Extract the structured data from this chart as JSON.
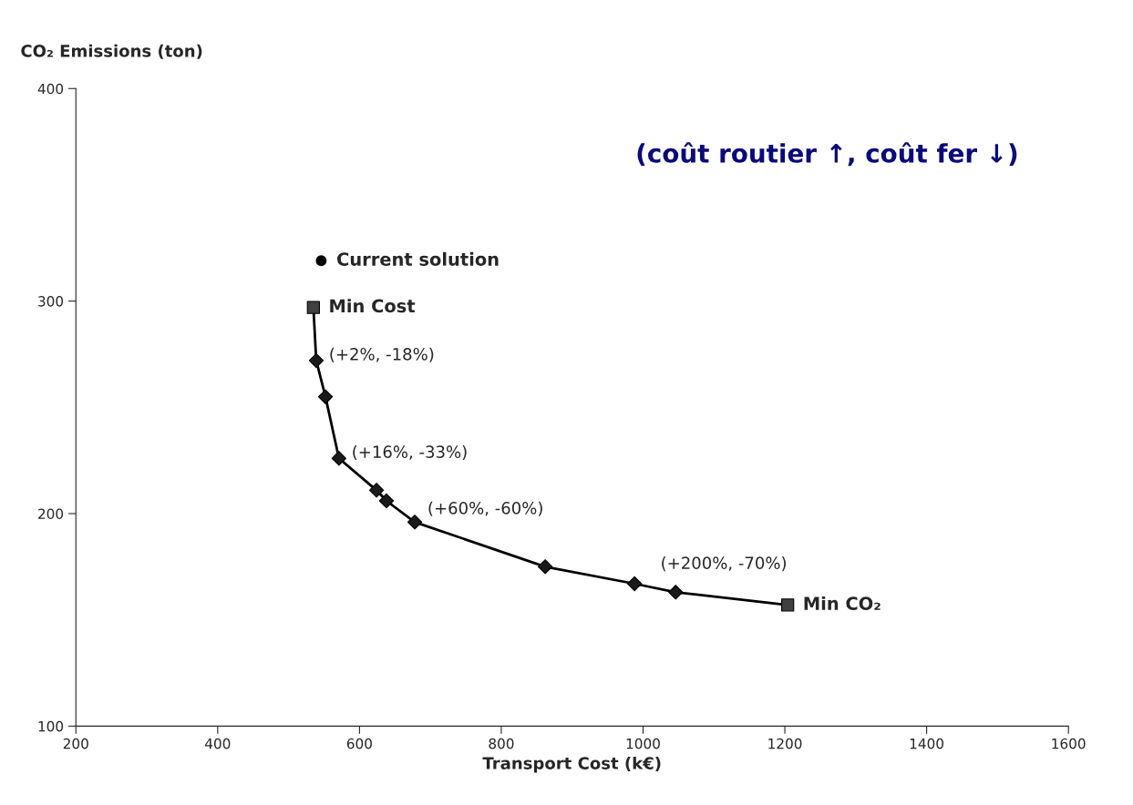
{
  "chart_data": {
    "type": "line",
    "xlabel": "Transport Cost (k€)",
    "ylabel": "CO₂ Emissions (ton)",
    "xlim": [
      200,
      1600
    ],
    "xticks": [
      200,
      400,
      600,
      800,
      1000,
      1200,
      1400,
      1600
    ],
    "ylim": [
      100,
      400
    ],
    "yticks": [
      100,
      200,
      300,
      400
    ],
    "grid": false,
    "series": [
      {
        "color": "#000000",
        "marker": "none",
        "line_style": "solid",
        "x": [
          535,
          539,
          552,
          571,
          624,
          638,
          678,
          862,
          988,
          1046,
          1204
        ],
        "values": [
          297,
          272,
          255,
          226,
          211,
          206,
          196,
          175,
          167,
          163,
          157
        ]
      },
      {
        "type": "scatter",
        "color": "#1a1a1a",
        "marker": "diamond",
        "x": [
          539,
          552,
          571,
          624,
          638,
          678,
          862,
          988,
          1046
        ],
        "values": [
          272,
          255,
          226,
          211,
          206,
          196,
          175,
          167,
          163
        ]
      },
      {
        "type": "scatter",
        "color": "#404040",
        "marker": "square",
        "x": [
          535,
          1204
        ],
        "values": [
          297,
          157
        ]
      },
      {
        "type": "scatter",
        "color": "#000000",
        "marker": "circle",
        "x": [
          546
        ],
        "values": [
          319
        ]
      }
    ],
    "annotations": [
      {
        "text": "Current solution",
        "x": 546,
        "y": 319
      },
      {
        "text": "Min Cost",
        "x": 535,
        "y": 297
      },
      {
        "text": "(+2%, -18%)",
        "x": 539,
        "y": 272
      },
      {
        "text": "(+16%, -33%)",
        "x": 571,
        "y": 226
      },
      {
        "text": "(+60%, -60%)",
        "x": 678,
        "y": 196
      },
      {
        "text": "(+200%, -70%)",
        "x": 1046,
        "y": 163
      },
      {
        "text": "Min CO₂",
        "x": 1204,
        "y": 157
      },
      "(coût routier ↑, coût fer ↓)"
    ]
  }
}
